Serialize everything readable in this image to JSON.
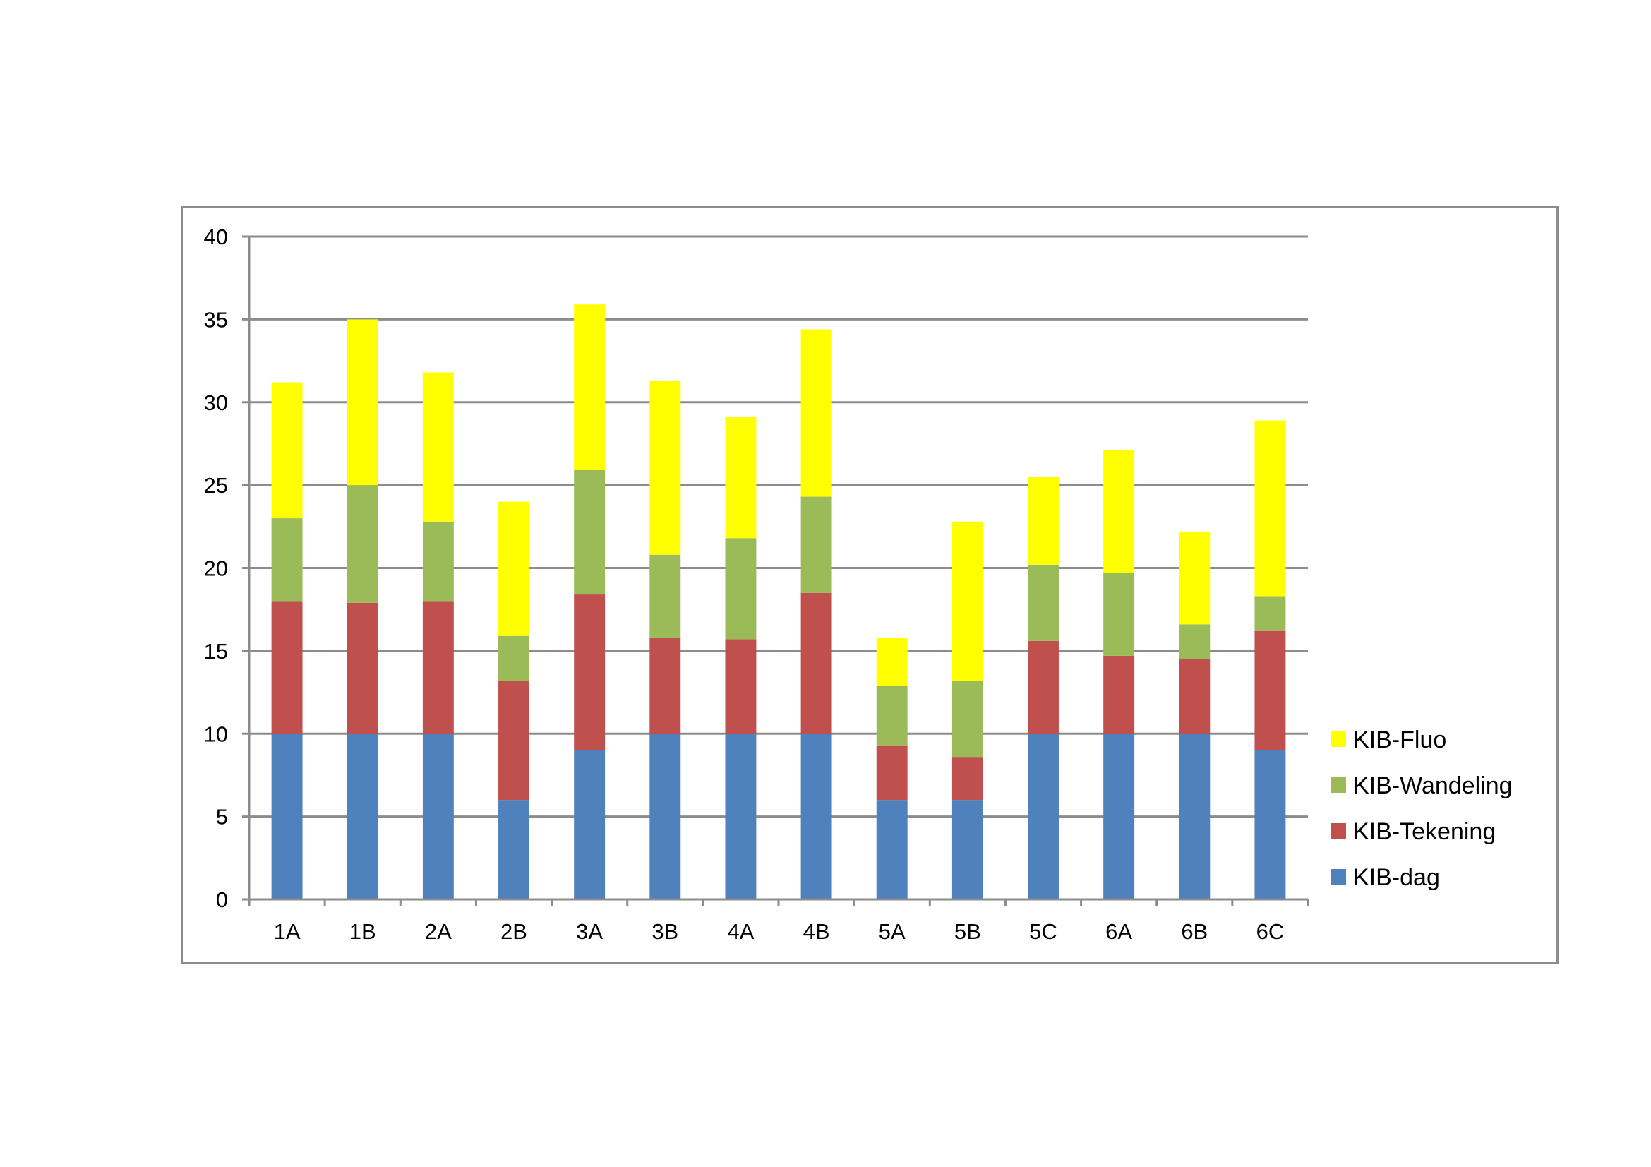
{
  "chart_data": {
    "type": "bar",
    "stacked": true,
    "title": "",
    "xlabel": "",
    "ylabel": "",
    "categories": [
      "1A",
      "1B",
      "2A",
      "2B",
      "3A",
      "3B",
      "4A",
      "4B",
      "5A",
      "5B",
      "5C",
      "6A",
      "6B",
      "6C"
    ],
    "ylim": [
      0,
      40
    ],
    "yticks": [
      "0",
      "5",
      "10",
      "15",
      "20",
      "25",
      "30",
      "35",
      "40"
    ],
    "grid": true,
    "legend_position": "right",
    "series": [
      {
        "name": "KIB-dag",
        "color": "#4f81bd",
        "values": [
          10,
          10,
          10,
          6,
          9,
          10,
          10,
          10,
          6,
          6,
          10,
          10,
          10,
          9
        ]
      },
      {
        "name": "KIB-Tekening",
        "color": "#c0504d",
        "values": [
          8,
          7.9,
          8,
          7.2,
          9.4,
          5.8,
          5.7,
          8.5,
          3.3,
          2.6,
          5.6,
          4.7,
          4.5,
          7.2
        ]
      },
      {
        "name": "KIB-Wandeling",
        "color": "#9bbb59",
        "values": [
          5,
          7.1,
          4.8,
          2.7,
          7.5,
          5,
          6.1,
          5.8,
          3.6,
          4.6,
          4.6,
          5,
          2.1,
          2.1
        ]
      },
      {
        "name": "KIB-Fluo",
        "color": "#ffff00",
        "values": [
          8.2,
          10,
          9,
          8.1,
          10,
          10.5,
          7.3,
          10.1,
          2.9,
          9.6,
          5.3,
          7.4,
          5.6,
          10.6
        ]
      }
    ]
  }
}
